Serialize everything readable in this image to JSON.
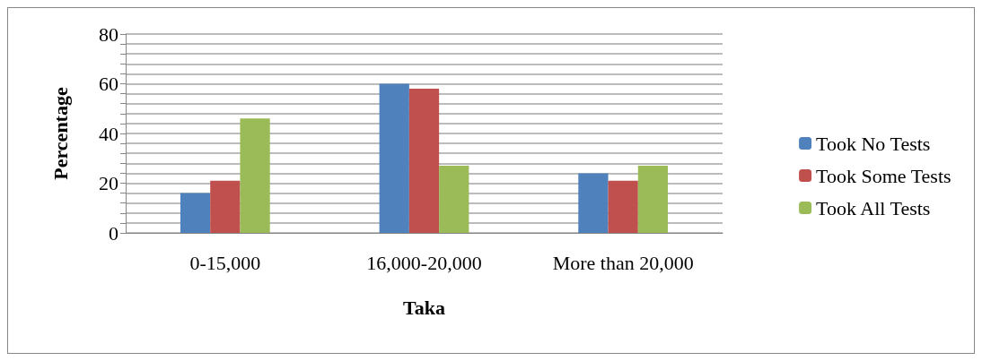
{
  "chart_data": {
    "type": "bar",
    "xlabel": "Taka",
    "ylabel": "Percentage",
    "categories": [
      "0-15,000",
      "16,000-20,000",
      "More than 20,000"
    ],
    "series": [
      {
        "name": "Took No Tests",
        "color": "#4f81bd",
        "values": [
          16,
          60,
          24
        ]
      },
      {
        "name": "Took Some Tests",
        "color": "#c0504d",
        "values": [
          21,
          58,
          21
        ]
      },
      {
        "name": "Took All Tests",
        "color": "#9bbb59",
        "values": [
          46,
          27,
          27
        ]
      }
    ],
    "ylim": [
      0,
      80
    ],
    "yticks": [
      0,
      {
        "value": 4,
        "label": null
      },
      {
        "value": 8,
        "label": null
      },
      {
        "value": 12,
        "label": null
      },
      {
        "value": 16,
        "label": null
      },
      20,
      {
        "value": 24,
        "label": null
      },
      {
        "value": 28,
        "label": null
      },
      {
        "value": 32,
        "label": null
      },
      {
        "value": 36,
        "label": null
      },
      40,
      {
        "value": 44,
        "label": null
      },
      {
        "value": 48,
        "label": null
      },
      {
        "value": 52,
        "label": null
      },
      {
        "value": 56,
        "label": null
      },
      60,
      {
        "value": 64,
        "label": null
      },
      {
        "value": 68,
        "label": null
      },
      {
        "value": 72,
        "label": null
      },
      {
        "value": 76,
        "label": null
      },
      80
    ],
    "grid": true,
    "legend": "right"
  }
}
